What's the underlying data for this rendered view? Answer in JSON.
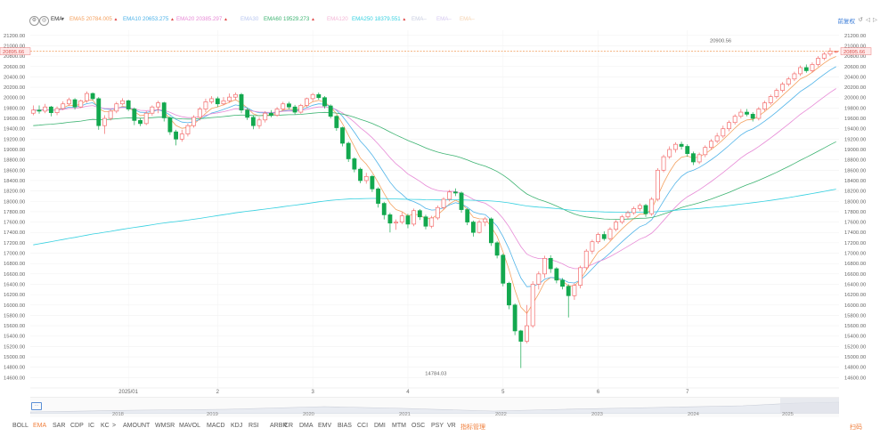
{
  "toolbar": {
    "indicator": "EMA",
    "right_label": "前复权"
  },
  "legend": [
    {
      "name": "EMA5",
      "value": "20784.005",
      "color": "#f4a261",
      "arrow": "▲"
    },
    {
      "name": "EMA10",
      "value": "20653.275",
      "color": "#4fb3e8",
      "arrow": "▲"
    },
    {
      "name": "EMA20",
      "value": "20385.297",
      "color": "#e78ad6",
      "arrow": "▲"
    },
    {
      "name": "EMA30",
      "value": "",
      "color": "#b9c7f0",
      "arrow": ""
    },
    {
      "name": "EMA60",
      "value": "19529.273",
      "color": "#3cb371",
      "arrow": "▲"
    },
    {
      "name": "EMA120",
      "value": "",
      "color": "#f3b6d6",
      "arrow": ""
    },
    {
      "name": "EMA250",
      "value": "18379.551",
      "color": "#35d0e0",
      "arrow": "▲"
    },
    {
      "name": "EMA–",
      "value": "",
      "color": "#c8cde0",
      "arrow": ""
    },
    {
      "name": "EMA–",
      "value": "",
      "color": "#d5c8f0",
      "arrow": ""
    },
    {
      "name": "EMA–",
      "value": "",
      "color": "#f5d3b0",
      "arrow": ""
    }
  ],
  "bottom_tabs": [
    "BOLL",
    "EMA",
    "SAR",
    "CDP",
    "IC",
    "KC",
    ">",
    "AMOUNT",
    "WMSR",
    "MAVOL",
    "MACD",
    "KDJ",
    "RSI",
    "ARBR",
    "CR",
    "DMA",
    "EMV",
    "BIAS",
    "CCI",
    "DMI",
    "MTM",
    "OSC",
    "PSY",
    "VR",
    "指标管理"
  ],
  "bottom_active": "EMA",
  "bottom_right": "扫码",
  "nav_years": [
    "2018",
    "2019",
    "2020",
    "2021",
    "2022",
    "2023",
    "2024",
    "2025"
  ],
  "colors": {
    "up": "#f36b6b",
    "down": "#13a84e",
    "price_line": "#f08a3c",
    "price_tag": "#e97c7c"
  },
  "chart_data": {
    "type": "candlestick",
    "ylim": [
      14400,
      21300
    ],
    "y_ticks": [
      14600,
      14800,
      15000,
      15200,
      15400,
      15600,
      15800,
      16000,
      16200,
      16400,
      16600,
      16800,
      17000,
      17200,
      17400,
      17600,
      17800,
      18000,
      18200,
      18400,
      18600,
      18800,
      19000,
      19200,
      19400,
      19600,
      19800,
      20000,
      20200,
      20400,
      20600,
      20800,
      21000,
      21200
    ],
    "y_tick_labels": [
      "14600.00",
      "14800.00",
      "15000.00",
      "15200.00",
      "15400.00",
      "15600.00",
      "15800.00",
      "16000.00",
      "16200.00",
      "16400.00",
      "16600.00",
      "16800.00",
      "17000.00",
      "17200.00",
      "17400.00",
      "17600.00",
      "17800.00",
      "18000.00",
      "18200.00",
      "18400.00",
      "18600.00",
      "18800.00",
      "19000.00",
      "19200.00",
      "19400.00",
      "19600.00",
      "19800.00",
      "20000.00",
      "20200.00",
      "20400.00",
      "20600.00",
      "20800.00",
      "21000.00",
      "21200.00"
    ],
    "x_labels": [
      {
        "label": "2025/01",
        "index": 16
      },
      {
        "label": "2",
        "index": 31
      },
      {
        "label": "3",
        "index": 47
      },
      {
        "label": "4",
        "index": 63
      },
      {
        "label": "5",
        "index": 79
      },
      {
        "label": "6",
        "index": 95
      },
      {
        "label": "7",
        "index": 110
      }
    ],
    "current_price": 20895.66,
    "current_price_label": "20895.66",
    "annotations": [
      {
        "label": "20900.56",
        "index": 118,
        "value": 20900.56
      },
      {
        "label": "14784.03",
        "index": 65,
        "value": 14784.03
      }
    ],
    "candles": [
      [
        19700,
        19760,
        19850,
        19660
      ],
      [
        19760,
        19740,
        19850,
        19690
      ],
      [
        19740,
        19820,
        19880,
        19700
      ],
      [
        19820,
        19710,
        19840,
        19640
      ],
      [
        19710,
        19790,
        19830,
        19660
      ],
      [
        19790,
        19880,
        19930,
        19760
      ],
      [
        19880,
        19960,
        20000,
        19840
      ],
      [
        19960,
        19820,
        19990,
        19770
      ],
      [
        19820,
        19940,
        19960,
        19800
      ],
      [
        19940,
        20080,
        20120,
        19900
      ],
      [
        20080,
        19980,
        20100,
        19950
      ],
      [
        19980,
        19460,
        20010,
        19380
      ],
      [
        19460,
        19600,
        19660,
        19300
      ],
      [
        19600,
        19740,
        19780,
        19560
      ],
      [
        19740,
        19880,
        19920,
        19700
      ],
      [
        19880,
        19940,
        19990,
        19850
      ],
      [
        19940,
        19780,
        19960,
        19740
      ],
      [
        19780,
        19560,
        19810,
        19470
      ],
      [
        19560,
        19500,
        19600,
        19450
      ],
      [
        19500,
        19700,
        19740,
        19470
      ],
      [
        19700,
        19820,
        19850,
        19650
      ],
      [
        19820,
        19900,
        19940,
        19700
      ],
      [
        19900,
        19610,
        19920,
        19540
      ],
      [
        19610,
        19340,
        19640,
        19280
      ],
      [
        19340,
        19200,
        19380,
        19080
      ],
      [
        19200,
        19300,
        19380,
        19150
      ],
      [
        19300,
        19460,
        19500,
        19250
      ],
      [
        19460,
        19620,
        19660,
        19420
      ],
      [
        19620,
        19780,
        19820,
        19560
      ],
      [
        19780,
        19920,
        19980,
        19720
      ],
      [
        19920,
        19980,
        20030,
        19880
      ],
      [
        19980,
        19880,
        20020,
        19820
      ],
      [
        19880,
        19940,
        20010,
        19850
      ],
      [
        19940,
        20010,
        20080,
        19900
      ],
      [
        20010,
        20060,
        20100,
        19950
      ],
      [
        20060,
        19760,
        20090,
        19700
      ],
      [
        19760,
        19620,
        19800,
        19570
      ],
      [
        19620,
        19460,
        19660,
        19390
      ],
      [
        19460,
        19570,
        19620,
        19400
      ],
      [
        19570,
        19700,
        19740,
        19520
      ],
      [
        19700,
        19660,
        19760,
        19620
      ],
      [
        19660,
        19780,
        19820,
        19630
      ],
      [
        19780,
        19880,
        19920,
        19740
      ],
      [
        19880,
        19820,
        19920,
        19780
      ],
      [
        19820,
        19720,
        19860,
        19680
      ],
      [
        19720,
        19850,
        19880,
        19690
      ],
      [
        19850,
        19980,
        20000,
        19800
      ],
      [
        19980,
        20060,
        20090,
        19930
      ],
      [
        20060,
        20000,
        20100,
        19960
      ],
      [
        20000,
        19840,
        20030,
        19790
      ],
      [
        19840,
        19640,
        19870,
        19600
      ],
      [
        19640,
        19420,
        19660,
        19360
      ],
      [
        19420,
        19120,
        19440,
        19060
      ],
      [
        19120,
        18820,
        19150,
        18760
      ],
      [
        18820,
        18620,
        18850,
        18560
      ],
      [
        18620,
        18400,
        18650,
        18350
      ],
      [
        18400,
        18480,
        18550,
        18340
      ],
      [
        18480,
        18240,
        18510,
        18180
      ],
      [
        18240,
        17960,
        18270,
        17880
      ],
      [
        17960,
        17740,
        17990,
        17650
      ],
      [
        17740,
        17580,
        17780,
        17400
      ],
      [
        17580,
        17600,
        17650,
        17450
      ],
      [
        17600,
        17720,
        17790,
        17560
      ],
      [
        17720,
        17560,
        17760,
        17480
      ],
      [
        17560,
        17820,
        17860,
        17520
      ],
      [
        17820,
        17700,
        17850,
        17640
      ],
      [
        17700,
        17520,
        17740,
        17460
      ],
      [
        17520,
        17680,
        17720,
        17480
      ],
      [
        17680,
        17880,
        17920,
        17640
      ],
      [
        17880,
        18040,
        18080,
        17840
      ],
      [
        18040,
        18180,
        18220,
        18000
      ],
      [
        18180,
        18160,
        18250,
        18100
      ],
      [
        18160,
        17840,
        18190,
        17780
      ],
      [
        17840,
        17600,
        17870,
        17540
      ],
      [
        17600,
        17400,
        17630,
        17320
      ],
      [
        17400,
        17600,
        17640,
        17380
      ],
      [
        17600,
        17660,
        17700,
        17520
      ],
      [
        17660,
        17200,
        17690,
        17140
      ],
      [
        17200,
        16960,
        17230,
        16900
      ],
      [
        16960,
        16420,
        16990,
        16360
      ],
      [
        16420,
        16000,
        16450,
        15920
      ],
      [
        16000,
        15500,
        16030,
        15420
      ],
      [
        15500,
        15300,
        15520,
        14784
      ],
      [
        15300,
        15600,
        16000,
        15260
      ],
      [
        15600,
        16400,
        16460,
        15560
      ],
      [
        16400,
        16600,
        16650,
        16300
      ],
      [
        16600,
        16900,
        16950,
        16520
      ],
      [
        16900,
        16700,
        16960,
        16620
      ],
      [
        16700,
        16480,
        16730,
        16420
      ],
      [
        16480,
        16360,
        16520,
        16300
      ],
      [
        16360,
        16180,
        16400,
        15760
      ],
      [
        16180,
        16380,
        16420,
        16100
      ],
      [
        16380,
        16720,
        16760,
        16320
      ],
      [
        16720,
        17040,
        17080,
        16680
      ],
      [
        17040,
        17220,
        17260,
        16980
      ],
      [
        17220,
        17360,
        17400,
        17180
      ],
      [
        17360,
        17280,
        17420,
        17240
      ],
      [
        17280,
        17460,
        17500,
        17240
      ],
      [
        17460,
        17600,
        17640,
        17420
      ],
      [
        17600,
        17700,
        17740,
        17560
      ],
      [
        17700,
        17780,
        17820,
        17660
      ],
      [
        17780,
        17860,
        17900,
        17740
      ],
      [
        17860,
        17920,
        17960,
        17810
      ],
      [
        17920,
        17760,
        17950,
        17700
      ],
      [
        17760,
        18040,
        18080,
        17720
      ],
      [
        18040,
        18600,
        18640,
        18000
      ],
      [
        18600,
        18860,
        18900,
        18560
      ],
      [
        18860,
        19000,
        19060,
        18820
      ],
      [
        19000,
        19100,
        19140,
        18940
      ],
      [
        19100,
        19060,
        19150,
        19000
      ],
      [
        19060,
        18920,
        19100,
        18860
      ],
      [
        18920,
        18760,
        18960,
        18700
      ],
      [
        18760,
        18900,
        18940,
        18720
      ],
      [
        18900,
        19040,
        19080,
        18850
      ],
      [
        19040,
        19160,
        19200,
        19000
      ],
      [
        19160,
        19260,
        19320,
        19120
      ],
      [
        19260,
        19400,
        19460,
        19220
      ],
      [
        19400,
        19520,
        19560,
        19350
      ],
      [
        19520,
        19640,
        19680,
        19480
      ],
      [
        19640,
        19720,
        19780,
        19600
      ],
      [
        19720,
        19680,
        19780,
        19640
      ],
      [
        19680,
        19600,
        19720,
        19540
      ],
      [
        19600,
        19780,
        19820,
        19560
      ],
      [
        19780,
        19900,
        19940,
        19740
      ],
      [
        19900,
        20020,
        20060,
        19860
      ],
      [
        20020,
        20140,
        20180,
        19980
      ],
      [
        20140,
        20260,
        20300,
        20100
      ],
      [
        20260,
        20360,
        20400,
        20220
      ],
      [
        20360,
        20460,
        20500,
        20320
      ],
      [
        20460,
        20580,
        20620,
        20420
      ],
      [
        20580,
        20520,
        20640,
        20480
      ],
      [
        20520,
        20640,
        20680,
        20480
      ],
      [
        20640,
        20760,
        20800,
        20600
      ],
      [
        20760,
        20840,
        20880,
        20720
      ],
      [
        20840,
        20900,
        20960,
        20800
      ],
      [
        20895,
        20895,
        20900,
        20860
      ]
    ]
  }
}
